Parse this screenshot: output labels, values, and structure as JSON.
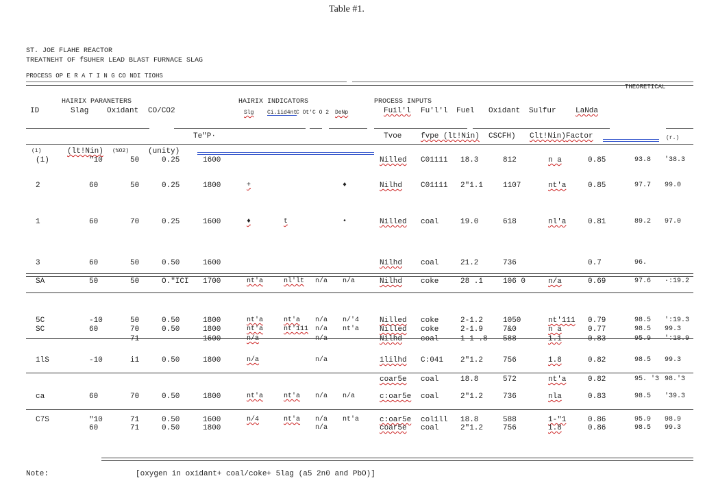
{
  "title": "Table #1.",
  "heading": {
    "line1": "ST. JOE FLAHE REACTOR",
    "line2": "TREATNEHT OF fSUHER LEAD BLAST FURNACE SLAG",
    "line3": "PROCESS OP E R A T I N G CO NDI TIOHS"
  },
  "groups": {
    "matrix_params": "HAIRIX PARANETERS",
    "matrix_indicators": "HAIRIX INDICATORS",
    "process_inputs": "PROCESS INPUTS",
    "theoretical": "THEORETICAL"
  },
  "columns": {
    "id": "ID",
    "slag": "Slag",
    "oxidant": "Oxidant",
    "co_co2": "CO/CO2",
    "slg": "Slg",
    "ci_iid": "Ci.iid4nt",
    "c_oo": "C Ot'C O 2",
    "dm": "DeNp",
    "fuel1": "Fuil'l",
    "fuel2": "Fu'l'l",
    "fuel3": "Fuel",
    "oxidant2": "Oxidant",
    "sulfur": "Sulfur",
    "lambda": "LaNda"
  },
  "units": {
    "slag": "(lt!Nin)",
    "oxidant": "(%O2)",
    "co_co2": "(unity)",
    "temp": "Te\"P·",
    "type": "Tvoe",
    "fuel_rate": "fvpe (lt!Nin)",
    "oxidant_rate": "CSCFH)",
    "sulfur_rate": "Clt!Nin)",
    "factor": "Factor",
    "r1": "(r.)"
  },
  "rows": [
    {
      "id": "(1)",
      "slag": "\"10",
      "oxidant": "50",
      "co": "0.25",
      "temp": "1600",
      "inds": [
        "",
        "",
        "",
        ""
      ],
      "type": "Nilled",
      "fuel": "C01111",
      "rate": "18.3",
      "oxrate": "812",
      "sulfur": "n a",
      "lambda": "0.85",
      "r1": "93.8",
      "r2": "'38.3"
    },
    {
      "id": "2",
      "slag": "60",
      "oxidant": "50",
      "co": "0.25",
      "temp": "1800",
      "inds": [
        "+",
        "",
        "",
        "♦"
      ],
      "type": "Nilhd",
      "fuel": "C01111",
      "rate": "2\"1.1",
      "oxrate": "1107",
      "sulfur": "nt'a",
      "lambda": "0.85",
      "r1": "97.7",
      "r2": "99.0"
    },
    {
      "id": "1",
      "slag": "60",
      "oxidant": "70",
      "co": "0.25",
      "temp": "1600",
      "inds": [
        "♦",
        "t",
        "",
        "•"
      ],
      "type": "Nilled",
      "fuel": "coal",
      "rate": "19.0",
      "oxrate": "618",
      "sulfur": "nl'a",
      "lambda": "0.81",
      "r1": "89.2",
      "r2": "97.0"
    },
    {
      "id": "3",
      "slag": "60",
      "oxidant": "50",
      "co": "0.50",
      "temp": "1600",
      "inds": [
        "",
        "",
        "",
        ""
      ],
      "type": "Nilhd",
      "fuel": "coal",
      "rate": "21.2",
      "oxrate": "736",
      "sulfur": "",
      "lambda": "0.7",
      "r1": "96.",
      "r2": ""
    },
    {
      "id": "SA",
      "slag": "50",
      "oxidant": "50",
      "co": "O.\"ICI",
      "temp": "1700",
      "inds": [
        "nt'a",
        "nl'lt",
        "n/a",
        "n/a"
      ],
      "type": "Nilhd",
      "fuel": "coke",
      "rate": "28 .1",
      "oxrate": "106 0",
      "sulfur": "n/a",
      "lambda": "0.69",
      "r1": "97.6",
      "r2": "·:19.2"
    },
    {
      "id": "5C",
      "slag": "-10",
      "oxidant": "50",
      "co": "0.50",
      "temp": "1800",
      "inds": [
        "nt'a",
        "nt'a",
        "n/a",
        "n/'4"
      ],
      "type": "Nilled",
      "fuel": "coke",
      "rate": "2-1.2",
      "oxrate": "1050",
      "sulfur": "nt'111",
      "lambda": "0.79",
      "r1": "98.5",
      "r2": "':19.3"
    },
    {
      "id": "SC",
      "slag": "60",
      "oxidant": "70",
      "co": "0.50",
      "temp": "1800",
      "inds": [
        "nt'a",
        "nt'111",
        "n/a",
        "nt'a"
      ],
      "type": "Nilled",
      "fuel": "coke",
      "rate": "2-1.9",
      "oxrate": "7&0",
      "sulfur": "n a",
      "lambda": "0.77",
      "r1": "98.5",
      "r2": "99.3"
    },
    {
      "id": "",
      "slag": "",
      "oxidant": "71",
      "co": "",
      "temp": "1600",
      "inds": [
        "n/a",
        "",
        "n/a",
        ""
      ],
      "type": "Nilhd",
      "fuel": "coal",
      "rate": "1 1 .8",
      "oxrate": "588",
      "sulfur": "1.1",
      "lambda": "0.83",
      "r1": "95.9",
      "r2": "':18.9"
    },
    {
      "id": "1lS",
      "slag": "-10",
      "oxidant": "i1",
      "co": "0.50",
      "temp": "1800",
      "inds": [
        "n/a",
        "",
        "n/a",
        ""
      ],
      "type": "1lilhd",
      "fuel": "C:041",
      "rate": "2\"1.2",
      "oxrate": "756",
      "sulfur": "1.8",
      "lambda": "0.82",
      "r1": "98.5",
      "r2": "99.3"
    },
    {
      "id": "",
      "slag": "",
      "oxidant": "",
      "co": "",
      "temp": "",
      "inds": [
        "",
        "",
        "",
        ""
      ],
      "type": "coar5e",
      "fuel": "coal",
      "rate": "18.8",
      "oxrate": "572",
      "sulfur": "nt'a",
      "lambda": "0.82",
      "r1": "95. '3",
      "r2": "98.'3"
    },
    {
      "id": "ca",
      "slag": "60",
      "oxidant": "70",
      "co": "0.50",
      "temp": "1800",
      "inds": [
        "nt'a",
        "nt'a",
        "n/a",
        "n/a"
      ],
      "type": "c:oar5e",
      "fuel": "coal",
      "rate": "2\"1.2",
      "oxrate": "736",
      "sulfur": "nla",
      "lambda": "0.83",
      "r1": "98.5",
      "r2": "'39.3"
    },
    {
      "id": "C7S",
      "slag": "\"10",
      "oxidant": "71",
      "co": "0.50",
      "temp": "1600",
      "inds": [
        "n/4",
        "nt'a",
        "n/a",
        "nt'a"
      ],
      "type": "c:oar5e",
      "fuel": "col1ll",
      "rate": "18.8",
      "oxrate": "588",
      "sulfur": "1-\"1",
      "lambda": "0.86",
      "r1": "95.9",
      "r2": "98.9"
    },
    {
      "id": "",
      "slag": "60",
      "oxidant": "71",
      "co": "0.50",
      "temp": "1800",
      "inds": [
        "",
        "",
        "n/a",
        ""
      ],
      "type": "coar5e",
      "fuel": "coal",
      "rate": "2\"1.2",
      "oxrate": "756",
      "sulfur": "1.8",
      "lambda": "0.86",
      "r1": "98.5",
      "r2": "99.3"
    }
  ],
  "note_label": "Note:",
  "note_text": "[oxygen in oxidant+ coal/coke+ 5lag (a5 2n0 and PbO)]"
}
